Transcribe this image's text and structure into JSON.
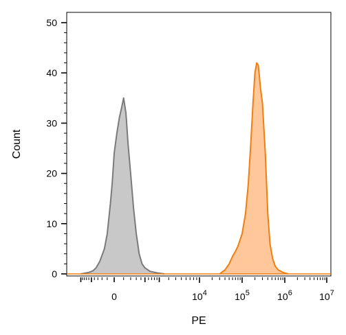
{
  "chart_data": {
    "type": "area",
    "title": "",
    "xlabel": "PE",
    "ylabel": "Count",
    "ylim": [
      0,
      50
    ],
    "y_ticks": [
      0,
      10,
      20,
      30,
      40,
      50
    ],
    "x_scale": "biexponential",
    "x_tick_labels": [
      {
        "base": "0",
        "exp": ""
      },
      {
        "base": "10",
        "exp": "4"
      },
      {
        "base": "10",
        "exp": "5"
      },
      {
        "base": "10",
        "exp": "6"
      },
      {
        "base": "10",
        "exp": "7"
      }
    ],
    "grid": false,
    "legend": "none",
    "series": [
      {
        "color_fill": "#c8c8c8",
        "color_line": "#7a7a7a",
        "points": [
          [
            -2000,
            0
          ],
          [
            -1200,
            0.3
          ],
          [
            -900,
            0.6
          ],
          [
            -700,
            1.2
          ],
          [
            -500,
            2.5
          ],
          [
            -300,
            5
          ],
          [
            -200,
            8
          ],
          [
            -100,
            14
          ],
          [
            -50,
            18
          ],
          [
            0,
            24
          ],
          [
            50,
            28
          ],
          [
            100,
            31
          ],
          [
            150,
            33
          ],
          [
            200,
            35
          ],
          [
            260,
            32
          ],
          [
            320,
            26
          ],
          [
            400,
            20
          ],
          [
            500,
            13
          ],
          [
            600,
            8
          ],
          [
            720,
            4
          ],
          [
            850,
            2
          ],
          [
            1000,
            1.2
          ],
          [
            1300,
            0.5
          ],
          [
            1800,
            0.2
          ],
          [
            2500,
            0
          ]
        ]
      },
      {
        "color_fill": "#ffc79a",
        "color_line": "#f07e12",
        "points": [
          [
            30000,
            0
          ],
          [
            40000,
            0.8
          ],
          [
            50000,
            2
          ],
          [
            60000,
            3.5
          ],
          [
            70000,
            4.5
          ],
          [
            80000,
            5.5
          ],
          [
            100000,
            8
          ],
          [
            120000,
            12
          ],
          [
            140000,
            18
          ],
          [
            160000,
            26
          ],
          [
            180000,
            34
          ],
          [
            200000,
            40
          ],
          [
            220000,
            42
          ],
          [
            240000,
            41.5
          ],
          [
            270000,
            37
          ],
          [
            300000,
            34
          ],
          [
            350000,
            24
          ],
          [
            400000,
            12
          ],
          [
            450000,
            6
          ],
          [
            520000,
            3
          ],
          [
            600000,
            1.5
          ],
          [
            700000,
            0.8
          ],
          [
            900000,
            0.3
          ],
          [
            1200000,
            0
          ]
        ]
      }
    ]
  }
}
